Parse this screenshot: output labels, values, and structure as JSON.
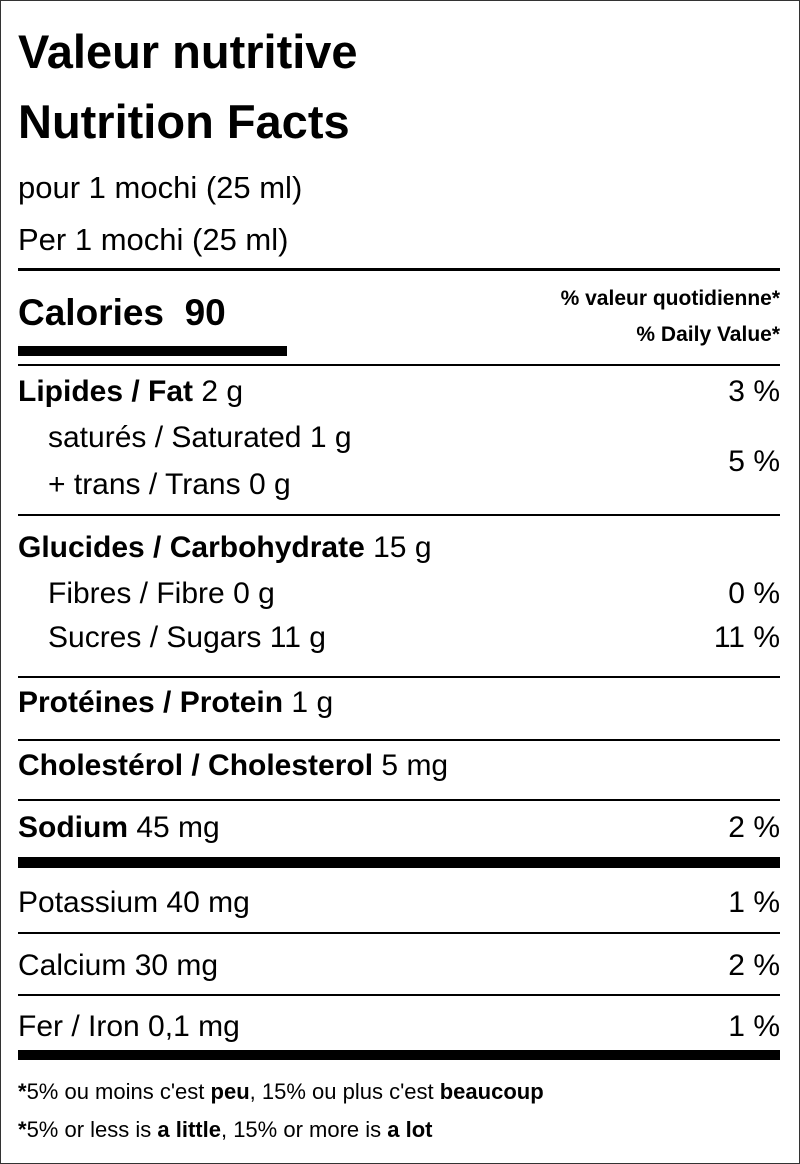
{
  "header": {
    "title_fr": "Valeur nutritive",
    "title_en": "Nutrition Facts",
    "serving_fr": "pour 1 mochi (25 ml)",
    "serving_en": "Per 1 mochi (25 ml)"
  },
  "calories": {
    "label": "Calories",
    "value": 90
  },
  "dv_header": {
    "fr": "% valeur quotidienne*",
    "en": "% Daily Value*"
  },
  "fat": {
    "name": "Lipides / Fat",
    "amount": "2 g",
    "dv": "3 %",
    "saturated": {
      "name": "saturés / Saturated",
      "amount": "1 g"
    },
    "trans": {
      "name": "+ trans / Trans",
      "amount": "0 g"
    },
    "sat_trans_dv": "5 %"
  },
  "carbohydrate": {
    "name": "Glucides / Carbohydrate",
    "amount": "15 g",
    "fibre": {
      "name": "Fibres / Fibre",
      "amount": "0 g",
      "dv": "0 %"
    },
    "sugars": {
      "name": "Sucres / Sugars",
      "amount": "11 g",
      "dv": "11 %"
    }
  },
  "protein": {
    "name": "Protéines / Protein",
    "amount": "1 g"
  },
  "cholesterol": {
    "name": "Cholestérol / Cholesterol",
    "amount": "5 mg"
  },
  "sodium": {
    "name": "Sodium",
    "amount": "45 mg",
    "dv": "2 %"
  },
  "potassium": {
    "name": "Potassium",
    "amount": "40 mg",
    "dv": "1 %"
  },
  "calcium": {
    "name": "Calcium",
    "amount": "30 mg",
    "dv": "2 %"
  },
  "iron": {
    "name": "Fer / Iron",
    "amount": "0,1 mg",
    "dv": "1 %"
  },
  "footnote_fr": [
    "*",
    "5% ou moins c'est ",
    "peu",
    ", 15% ou plus c'est ",
    "beaucoup"
  ],
  "footnote_en": [
    "*",
    "5% or less is ",
    "a little",
    ", 15% or more is ",
    "a lot"
  ]
}
